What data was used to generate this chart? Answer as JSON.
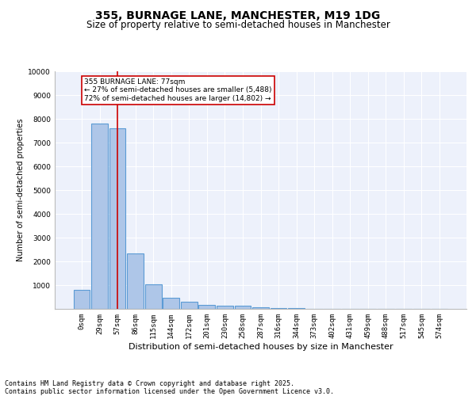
{
  "title1": "355, BURNAGE LANE, MANCHESTER, M19 1DG",
  "title2": "Size of property relative to semi-detached houses in Manchester",
  "xlabel": "Distribution of semi-detached houses by size in Manchester",
  "ylabel": "Number of semi-detached properties",
  "bar_labels": [
    "0sqm",
    "29sqm",
    "57sqm",
    "86sqm",
    "115sqm",
    "144sqm",
    "172sqm",
    "201sqm",
    "230sqm",
    "258sqm",
    "287sqm",
    "316sqm",
    "344sqm",
    "373sqm",
    "402sqm",
    "431sqm",
    "459sqm",
    "488sqm",
    "517sqm",
    "545sqm",
    "574sqm"
  ],
  "bar_values": [
    800,
    7800,
    7600,
    2350,
    1020,
    470,
    290,
    170,
    130,
    120,
    70,
    30,
    20,
    10,
    5,
    3,
    2,
    1,
    1,
    0,
    0
  ],
  "bar_color": "#aec6e8",
  "bar_edgecolor": "#5b9bd5",
  "bar_linewidth": 0.8,
  "vline_x": 2,
  "vline_color": "#cc0000",
  "annotation_text": "355 BURNAGE LANE: 77sqm\n← 27% of semi-detached houses are smaller (5,488)\n72% of semi-detached houses are larger (14,802) →",
  "ylim": [
    0,
    10000
  ],
  "yticks": [
    0,
    1000,
    2000,
    3000,
    4000,
    5000,
    6000,
    7000,
    8000,
    9000,
    10000
  ],
  "bg_color": "#edf1fb",
  "grid_color": "#ffffff",
  "footer": "Contains HM Land Registry data © Crown copyright and database right 2025.\nContains public sector information licensed under the Open Government Licence v3.0.",
  "title1_fontsize": 10,
  "title2_fontsize": 8.5,
  "xlabel_fontsize": 8,
  "ylabel_fontsize": 7,
  "tick_fontsize": 6.5,
  "annotation_fontsize": 6.5,
  "footer_fontsize": 6
}
